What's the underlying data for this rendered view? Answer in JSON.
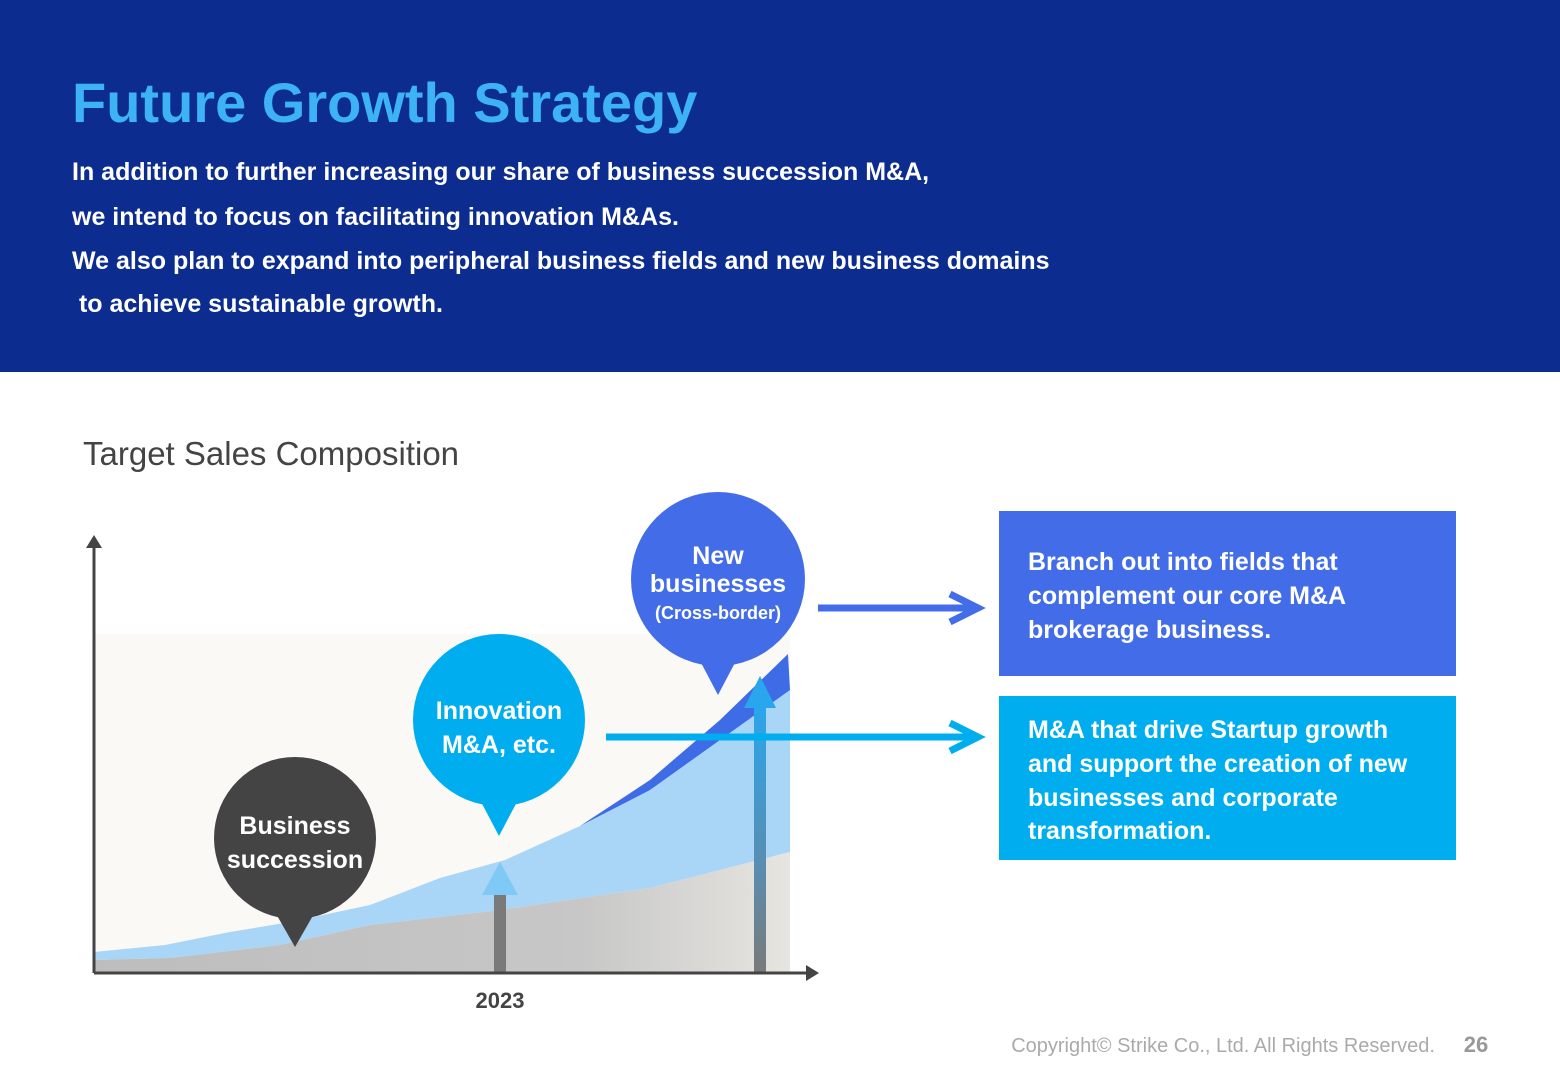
{
  "header": {
    "title": "Future Growth Strategy",
    "body": [
      "In addition to further increasing our share of business succession M&A,",
      "we intend to focus on facilitating innovation M&As.",
      "We also plan to expand into peripheral business fields and new business domains",
      " to achieve sustainable growth."
    ]
  },
  "section_title": "Target Sales Composition",
  "diagram": {
    "x_label": "2023",
    "bubbles": [
      {
        "lines": [
          "Business",
          "succession"
        ]
      },
      {
        "lines": [
          "Innovation",
          "M&A, etc."
        ]
      },
      {
        "lines": [
          "New",
          "businesses"
        ],
        "note": "(Cross-border)"
      }
    ],
    "boxes": [
      {
        "lines": [
          "Branch out into fields that",
          "complement our core M&A",
          "brokerage business."
        ]
      },
      {
        "lines": [
          "M&A that drive Startup growth",
          "and support the creation of new",
          "businesses and corporate",
          "transformation."
        ]
      }
    ]
  },
  "footer": {
    "copyright": "Copyright© Strike Co., Ltd. All Rights Reserved.",
    "page_number": 26
  }
}
